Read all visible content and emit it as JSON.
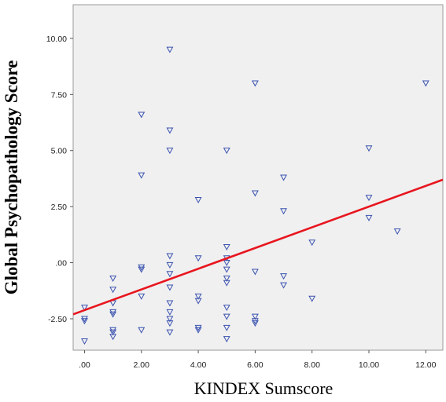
{
  "chart_data": {
    "type": "scatter",
    "title": "",
    "xlabel": "KINDEX Sumscore",
    "ylabel": "Global Psychopathology Score",
    "xlim": [
      -0.4,
      12.6
    ],
    "ylim": [
      -3.9,
      11.5
    ],
    "x_ticks": [
      {
        "value": 0,
        "label": ".00"
      },
      {
        "value": 2,
        "label": "2.00"
      },
      {
        "value": 4,
        "label": "4.00"
      },
      {
        "value": 6,
        "label": "6.00"
      },
      {
        "value": 8,
        "label": "8.00"
      },
      {
        "value": 10,
        "label": "10.00"
      },
      {
        "value": 12,
        "label": "12.00"
      }
    ],
    "y_ticks": [
      {
        "value": -2.5,
        "label": "-2.50"
      },
      {
        "value": 0,
        "label": ".00"
      },
      {
        "value": 2.5,
        "label": "2.50"
      },
      {
        "value": 5,
        "label": "5.00"
      },
      {
        "value": 7.5,
        "label": "7.50"
      },
      {
        "value": 10,
        "label": "10.00"
      }
    ],
    "grid": false,
    "legend": "none",
    "colors": {
      "plot_background": "#f0f0f0",
      "marker": "#3a52b0",
      "fit_line": "#e8161f",
      "frame": "#9a9a9a"
    },
    "marker_shape": "triangle-down",
    "points": [
      [
        0,
        -2.0
      ],
      [
        0,
        -2.5
      ],
      [
        0,
        -2.6
      ],
      [
        0,
        -3.5
      ],
      [
        1,
        -0.7
      ],
      [
        1,
        -1.2
      ],
      [
        1,
        -1.8
      ],
      [
        1,
        -2.2
      ],
      [
        1,
        -2.3
      ],
      [
        1,
        -3.0
      ],
      [
        1,
        -3.1
      ],
      [
        1,
        -3.3
      ],
      [
        2,
        6.6
      ],
      [
        2,
        3.9
      ],
      [
        2,
        -0.2
      ],
      [
        2,
        -0.3
      ],
      [
        2,
        -1.5
      ],
      [
        2,
        -3.0
      ],
      [
        3,
        9.5
      ],
      [
        3,
        5.9
      ],
      [
        3,
        5.0
      ],
      [
        3,
        0.3
      ],
      [
        3,
        -0.1
      ],
      [
        3,
        -0.5
      ],
      [
        3,
        -1.1
      ],
      [
        3,
        -1.8
      ],
      [
        3,
        -2.2
      ],
      [
        3,
        -2.5
      ],
      [
        3,
        -2.7
      ],
      [
        3,
        -3.1
      ],
      [
        4,
        2.8
      ],
      [
        4,
        0.2
      ],
      [
        4,
        -1.5
      ],
      [
        4,
        -1.7
      ],
      [
        4,
        -2.9
      ],
      [
        4,
        -3.0
      ],
      [
        5,
        5.0
      ],
      [
        5,
        0.7
      ],
      [
        5,
        0.2
      ],
      [
        5,
        0.0
      ],
      [
        5,
        -0.3
      ],
      [
        5,
        -0.7
      ],
      [
        5,
        -0.9
      ],
      [
        5,
        -2.0
      ],
      [
        5,
        -2.4
      ],
      [
        5,
        -2.9
      ],
      [
        5,
        -3.4
      ],
      [
        6,
        8.0
      ],
      [
        6,
        3.1
      ],
      [
        6,
        -0.4
      ],
      [
        6,
        -2.4
      ],
      [
        6,
        -2.6
      ],
      [
        6,
        -2.7
      ],
      [
        7,
        3.8
      ],
      [
        7,
        2.3
      ],
      [
        7,
        -0.6
      ],
      [
        7,
        -1.0
      ],
      [
        8,
        0.9
      ],
      [
        8,
        -1.6
      ],
      [
        10,
        5.1
      ],
      [
        10,
        2.9
      ],
      [
        10,
        2.0
      ],
      [
        11,
        1.4
      ],
      [
        12,
        8.0
      ]
    ],
    "fit_line": {
      "x": [
        -0.4,
        12.6
      ],
      "y": [
        -2.3,
        3.7
      ]
    }
  }
}
